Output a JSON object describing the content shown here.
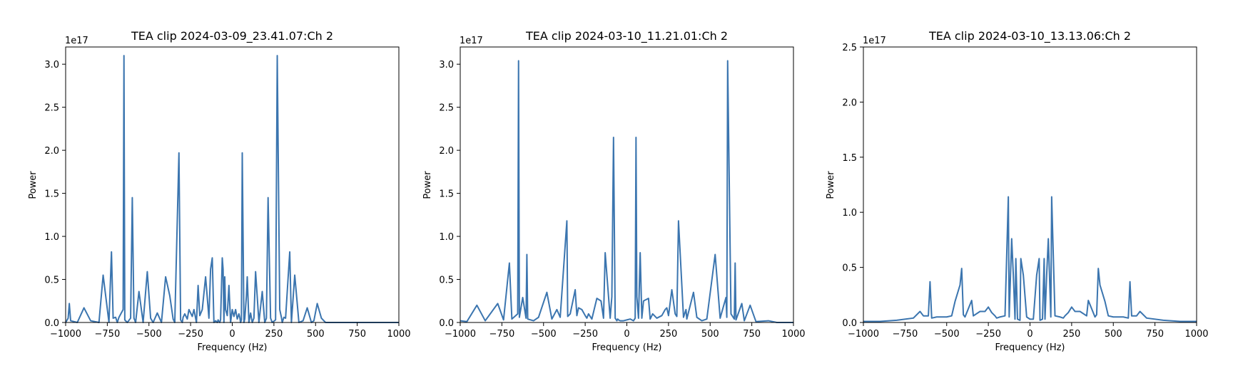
{
  "colors": {
    "line": "#3b75af",
    "axis": "#000000",
    "background": "#ffffff"
  },
  "chart_data": [
    {
      "type": "line",
      "title": "TEA clip 2024-03-09_23.41.07:Ch 2",
      "xlabel": "Frequency (Hz)",
      "ylabel": "Power",
      "offset_text": "1e17",
      "xlim": [
        -1000,
        1000
      ],
      "ylim": [
        0,
        3.2
      ],
      "xticks": [
        -1000,
        -750,
        -500,
        -250,
        0,
        250,
        500,
        750,
        1000
      ],
      "xtick_labels": [
        "−1000",
        "−750",
        "−500",
        "−250",
        "0",
        "250",
        "500",
        "750",
        "1000"
      ],
      "yticks": [
        0.0,
        0.5,
        1.0,
        1.5,
        2.0,
        2.5,
        3.0
      ],
      "ytick_labels": [
        "0.0",
        "0.5",
        "1.0",
        "1.5",
        "2.0",
        "2.5",
        "3.0"
      ],
      "grid": false,
      "series": [
        {
          "x": [
            -1000,
            -985,
            -978,
            -970,
            -930,
            -890,
            -850,
            -800,
            -775,
            -740,
            -725,
            -715,
            -700,
            -690,
            -680,
            -655,
            -650,
            -645,
            -630,
            -610,
            -600,
            -590,
            -580,
            -560,
            -535,
            -510,
            -490,
            -475,
            -450,
            -425,
            -400,
            -375,
            -355,
            -345,
            -320,
            -310,
            -300,
            -295,
            -285,
            -270,
            -260,
            -240,
            -230,
            -215,
            -205,
            -195,
            -180,
            -160,
            -140,
            -130,
            -120,
            -110,
            -100,
            -90,
            -85,
            -75,
            -70,
            -60,
            -55,
            -50,
            -45,
            -40,
            -30,
            -20,
            -10,
            0,
            10,
            20,
            30,
            40,
            45,
            50,
            55,
            60,
            70,
            75,
            85,
            90,
            100,
            110,
            120,
            130,
            140,
            160,
            180,
            195,
            205,
            215,
            230,
            240,
            260,
            270,
            285,
            295,
            300,
            310,
            320,
            345,
            355,
            375,
            400,
            425,
            450,
            475,
            490,
            510,
            535,
            560,
            580,
            590,
            600,
            610,
            630,
            645,
            650,
            655,
            680,
            690,
            700,
            715,
            725,
            740,
            775,
            800,
            850,
            890,
            930,
            970,
            978,
            985,
            1000
          ],
          "y": [
            0.0,
            0.05,
            0.22,
            0.02,
            0.0,
            0.17,
            0.02,
            0.0,
            0.55,
            0.0,
            0.82,
            0.05,
            0.06,
            0.0,
            0.06,
            0.15,
            3.1,
            0.03,
            0.0,
            0.05,
            1.45,
            0.05,
            0.0,
            0.36,
            0.0,
            0.59,
            0.05,
            0.0,
            0.11,
            0.0,
            0.53,
            0.31,
            0.04,
            0.0,
            1.97,
            0.03,
            0.0,
            0.06,
            0.1,
            0.04,
            0.15,
            0.07,
            0.15,
            0.0,
            0.43,
            0.08,
            0.15,
            0.53,
            0.05,
            0.62,
            0.75,
            0.0,
            0.02,
            0.0,
            0.03,
            0.0,
            0.03,
            0.75,
            0.62,
            0.0,
            0.53,
            0.15,
            0.08,
            0.43,
            0.0,
            0.15,
            0.07,
            0.15,
            0.04,
            0.1,
            0.06,
            0.0,
            0.03,
            1.97,
            0.0,
            0.04,
            0.31,
            0.53,
            0.0,
            0.11,
            0.0,
            0.05,
            0.59,
            0.0,
            0.36,
            0.0,
            0.05,
            1.45,
            0.05,
            0.0,
            0.03,
            3.1,
            0.15,
            0.06,
            0.0,
            0.06,
            0.05,
            0.82,
            0.0,
            0.55,
            0.0,
            0.02,
            0.17,
            0.0,
            0.02,
            0.22,
            0.05,
            0.0,
            0.0,
            0.0,
            0.0,
            0.0,
            0.0,
            0.0,
            0.0,
            0.0,
            0.0,
            0.0,
            0.0,
            0.0,
            0.0,
            0.0,
            0.0,
            0.0,
            0.0,
            0.0,
            0.0,
            0.0,
            0.0,
            0.0,
            0.0
          ]
        }
      ]
    },
    {
      "type": "line",
      "title": "TEA clip 2024-03-10_11.21.01:Ch 2",
      "xlabel": "Frequency (Hz)",
      "ylabel": "Power",
      "offset_text": "1e17",
      "xlim": [
        -1000,
        1000
      ],
      "ylim": [
        0,
        3.2
      ],
      "xticks": [
        -1000,
        -750,
        -500,
        -250,
        0,
        250,
        500,
        750,
        1000
      ],
      "xtick_labels": [
        "−1000",
        "−750",
        "−500",
        "−250",
        "0",
        "250",
        "500",
        "750",
        "1000"
      ],
      "yticks": [
        0.0,
        0.5,
        1.0,
        1.5,
        2.0,
        2.5,
        3.0
      ],
      "ytick_labels": [
        "0.0",
        "0.5",
        "1.0",
        "1.5",
        "2.0",
        "2.5",
        "3.0"
      ],
      "grid": false,
      "series": [
        {
          "x": [
            -1000,
            -960,
            -900,
            -850,
            -775,
            -740,
            -705,
            -690,
            -655,
            -650,
            -645,
            -625,
            -605,
            -600,
            -595,
            -560,
            -530,
            -480,
            -450,
            -420,
            -400,
            -360,
            -355,
            -340,
            -310,
            -300,
            -290,
            -270,
            -250,
            -240,
            -230,
            -210,
            -180,
            -155,
            -140,
            -130,
            -100,
            -90,
            -80,
            -70,
            -60,
            -55,
            -50,
            -40,
            -20,
            0,
            20,
            40,
            50,
            55,
            60,
            70,
            80,
            90,
            100,
            130,
            140,
            155,
            180,
            210,
            230,
            240,
            250,
            270,
            290,
            300,
            310,
            340,
            355,
            360,
            400,
            420,
            450,
            480,
            530,
            560,
            595,
            600,
            605,
            625,
            645,
            650,
            655,
            690,
            705,
            740,
            775,
            850,
            900,
            960,
            1000
          ],
          "y": [
            0.02,
            0.01,
            0.2,
            0.02,
            0.22,
            0.03,
            0.69,
            0.04,
            0.1,
            3.04,
            0.06,
            0.29,
            0.05,
            0.79,
            0.04,
            0.02,
            0.06,
            0.35,
            0.04,
            0.15,
            0.06,
            1.18,
            0.07,
            0.1,
            0.38,
            0.08,
            0.17,
            0.15,
            0.08,
            0.05,
            0.1,
            0.04,
            0.28,
            0.25,
            0.05,
            0.81,
            0.05,
            0.3,
            2.15,
            0.05,
            0.02,
            0.04,
            0.03,
            0.02,
            0.02,
            0.03,
            0.04,
            0.02,
            0.05,
            2.15,
            0.3,
            0.05,
            0.81,
            0.05,
            0.25,
            0.28,
            0.04,
            0.1,
            0.05,
            0.08,
            0.15,
            0.17,
            0.08,
            0.38,
            0.1,
            0.07,
            1.18,
            0.06,
            0.15,
            0.04,
            0.35,
            0.06,
            0.02,
            0.04,
            0.79,
            0.05,
            0.29,
            0.06,
            3.04,
            0.1,
            0.04,
            0.69,
            0.03,
            0.22,
            0.02,
            0.2,
            0.01,
            0.02,
            0.0,
            0.0,
            0.0
          ]
        }
      ]
    },
    {
      "type": "line",
      "title": "TEA clip 2024-03-10_13.13.06:Ch 2",
      "xlabel": "Frequency (Hz)",
      "ylabel": "Power",
      "offset_text": "1e17",
      "xlim": [
        -1000,
        1000
      ],
      "ylim": [
        0,
        2.5
      ],
      "xticks": [
        -1000,
        -750,
        -500,
        -250,
        0,
        250,
        500,
        750,
        1000
      ],
      "xtick_labels": [
        "−1000",
        "−750",
        "−500",
        "−250",
        "0",
        "250",
        "500",
        "750",
        "1000"
      ],
      "yticks": [
        0.0,
        0.5,
        1.0,
        1.5,
        2.0,
        2.5
      ],
      "ytick_labels": [
        "0.0",
        "0.5",
        "1.0",
        "1.5",
        "2.0",
        "2.5"
      ],
      "grid": false,
      "series": [
        {
          "x": [
            -1000,
            -900,
            -800,
            -700,
            -660,
            -640,
            -610,
            -600,
            -590,
            -560,
            -500,
            -470,
            -450,
            -420,
            -410,
            -400,
            -390,
            -350,
            -340,
            -300,
            -270,
            -250,
            -230,
            -210,
            -200,
            -180,
            -150,
            -130,
            -125,
            -110,
            -100,
            -90,
            -85,
            -75,
            -60,
            -55,
            -40,
            -20,
            0,
            20,
            40,
            55,
            60,
            75,
            85,
            90,
            100,
            110,
            125,
            130,
            150,
            180,
            200,
            210,
            230,
            250,
            270,
            300,
            340,
            350,
            390,
            400,
            410,
            420,
            450,
            470,
            500,
            560,
            590,
            600,
            610,
            640,
            660,
            700,
            800,
            900,
            1000
          ],
          "y": [
            0.01,
            0.01,
            0.02,
            0.04,
            0.1,
            0.06,
            0.06,
            0.37,
            0.04,
            0.05,
            0.05,
            0.06,
            0.19,
            0.34,
            0.49,
            0.07,
            0.05,
            0.2,
            0.06,
            0.1,
            0.1,
            0.14,
            0.09,
            0.06,
            0.04,
            0.05,
            0.06,
            1.14,
            0.05,
            0.76,
            0.43,
            0.03,
            0.58,
            0.03,
            0.02,
            0.58,
            0.43,
            0.05,
            0.03,
            0.03,
            0.43,
            0.58,
            0.02,
            0.03,
            0.58,
            0.03,
            0.43,
            0.76,
            0.05,
            1.14,
            0.06,
            0.05,
            0.04,
            0.06,
            0.09,
            0.14,
            0.1,
            0.1,
            0.06,
            0.2,
            0.05,
            0.07,
            0.49,
            0.34,
            0.19,
            0.06,
            0.05,
            0.05,
            0.04,
            0.37,
            0.06,
            0.06,
            0.1,
            0.04,
            0.02,
            0.01,
            0.01
          ]
        }
      ]
    }
  ]
}
